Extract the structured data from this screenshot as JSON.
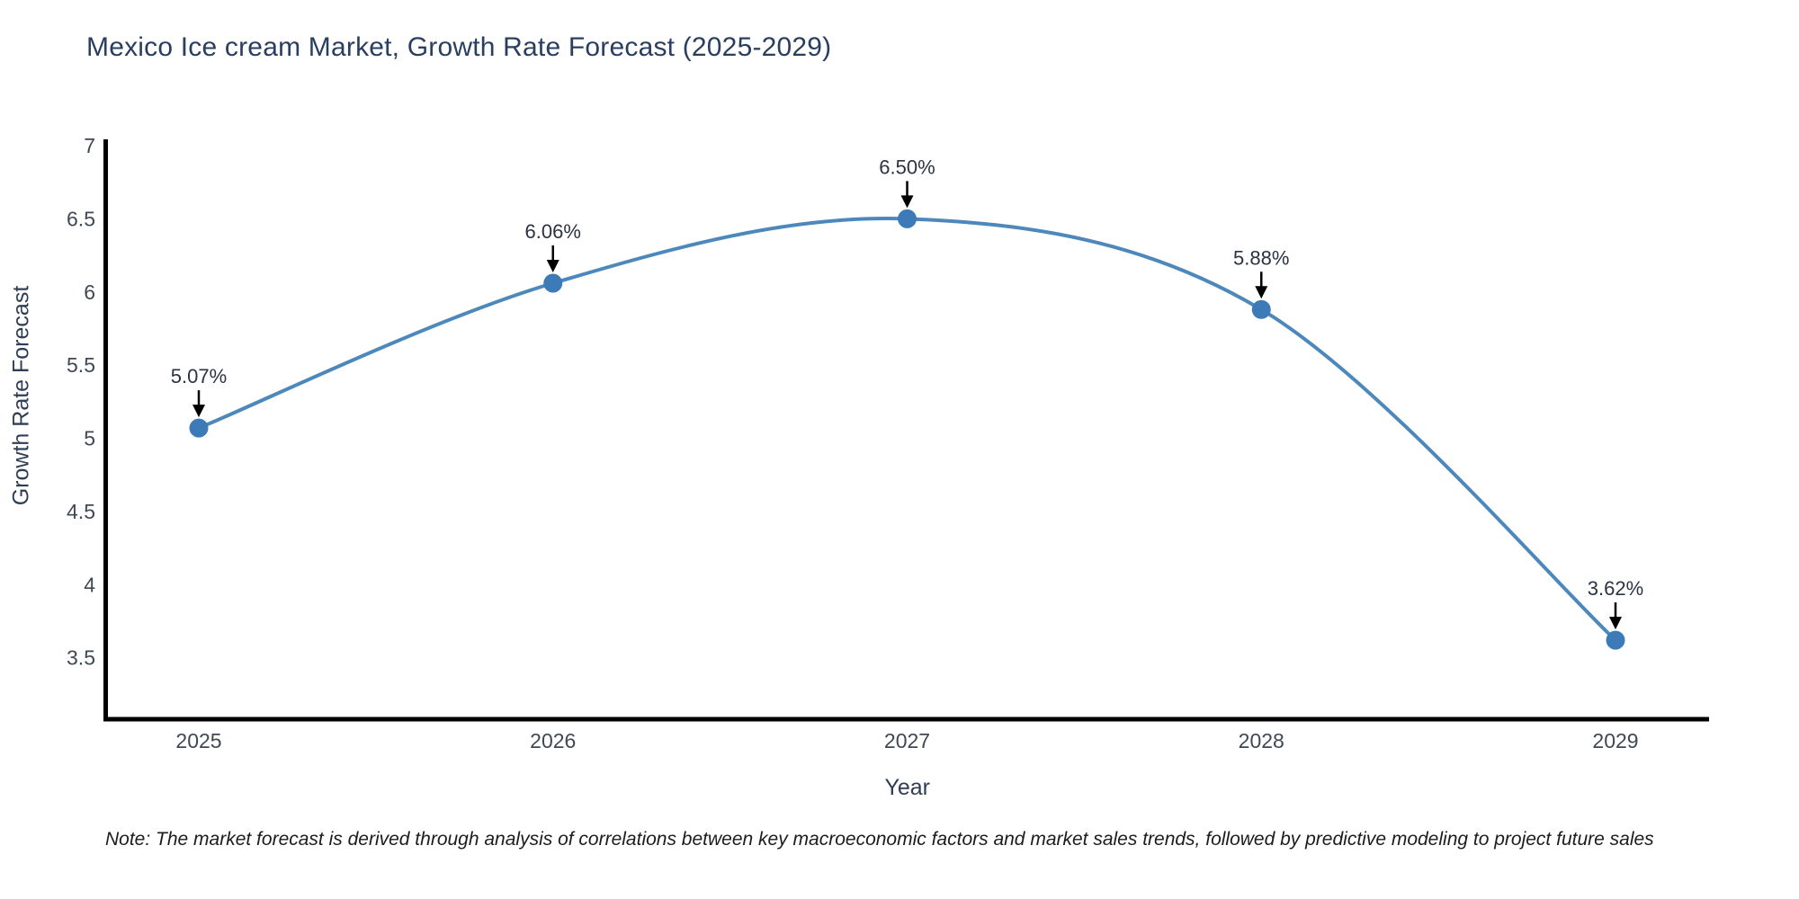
{
  "chart_data": {
    "type": "line",
    "title": "Mexico Ice cream Market, Growth Rate Forecast (2025-2029)",
    "xlabel": "Year",
    "ylabel": "Growth Rate Forecast",
    "categories": [
      "2025",
      "2026",
      "2027",
      "2028",
      "2029"
    ],
    "values": [
      5.07,
      6.06,
      6.5,
      5.88,
      3.62
    ],
    "point_labels": [
      "5.07%",
      "6.06%",
      "6.50%",
      "5.88%",
      "3.62%"
    ],
    "yticks": [
      7,
      6.5,
      6,
      5.5,
      5,
      4.5,
      4,
      3.5
    ],
    "ylim": [
      3.08,
      7.0
    ],
    "grid": false,
    "legend": "none",
    "line_shape": "spline",
    "annotations_have_arrows": true,
    "colors": {
      "line": "#4d88bd",
      "marker": "#3d7bb8",
      "axis": "#000000",
      "title": "#2a3f5f",
      "tick": "#404854",
      "axis_title": "#2f3d55",
      "annotation_text": "#2b3342",
      "arrow": "#000000",
      "background": "#ffffff"
    }
  },
  "note": "Note: The market forecast is derived through analysis of correlations between key macroeconomic factors and market sales trends, followed by predictive modeling to project future sales"
}
